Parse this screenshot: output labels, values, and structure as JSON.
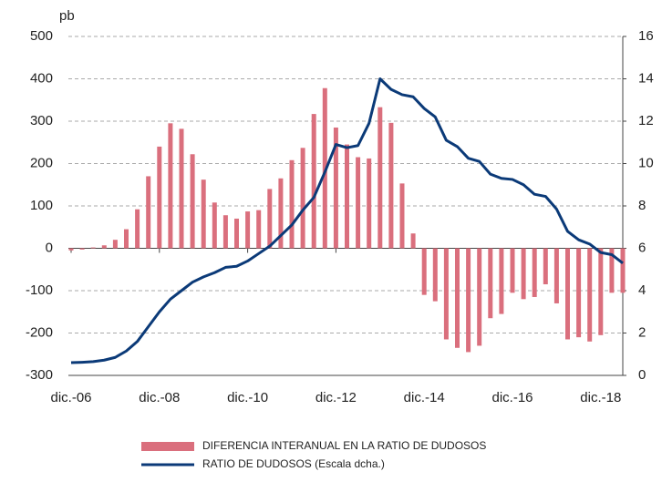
{
  "chart_data": {
    "type": "bar_line",
    "y_unit_label": "pb",
    "categories": [
      "dic.-06",
      null,
      null,
      null,
      null,
      null,
      null,
      null,
      "dic.-08",
      null,
      null,
      null,
      null,
      null,
      null,
      null,
      "dic.-10",
      null,
      null,
      null,
      null,
      null,
      null,
      null,
      "dic.-12",
      null,
      null,
      null,
      null,
      null,
      null,
      null,
      "dic.-14",
      null,
      null,
      null,
      null,
      null,
      null,
      null,
      "dic.-16",
      null,
      null,
      null,
      null,
      null,
      null,
      null,
      "dic.-18",
      null,
      null
    ],
    "series": [
      {
        "name": "DIFERENCIA INTERANUAL EN LA RATIO DE DUDOSOS",
        "color": "#da6f7d",
        "type": "bar",
        "values": [
          -5,
          -3,
          2,
          7,
          20,
          45,
          92,
          170,
          240,
          295,
          282,
          222,
          162,
          108,
          78,
          70,
          87,
          90,
          140,
          165,
          208,
          237,
          317,
          378,
          285,
          245,
          215,
          212,
          333,
          296,
          153,
          35,
          -110,
          -125,
          -215,
          -235,
          -245,
          -230,
          -165,
          -155,
          -105,
          -120,
          -115,
          -85,
          -130,
          -215,
          -210,
          -220,
          -205,
          -105,
          -105
        ]
      },
      {
        "name": "RATIO DE DUDOSOS (Escala dcha.)",
        "color": "#0b3a78",
        "type": "line",
        "axis": "y2",
        "values": [
          0.6,
          0.62,
          0.65,
          0.72,
          0.85,
          1.15,
          1.6,
          2.3,
          3.0,
          3.6,
          4.0,
          4.4,
          4.65,
          4.85,
          5.1,
          5.15,
          5.4,
          5.75,
          6.1,
          6.6,
          7.1,
          7.8,
          8.4,
          9.6,
          10.9,
          10.75,
          10.85,
          11.9,
          14.0,
          13.5,
          13.25,
          13.15,
          12.6,
          12.2,
          11.1,
          10.8,
          10.25,
          10.1,
          9.5,
          9.3,
          9.25,
          9.0,
          8.55,
          8.45,
          7.85,
          6.8,
          6.4,
          6.2,
          5.8,
          5.7,
          5.3
        ]
      }
    ],
    "ylim": [
      -300,
      500
    ],
    "yticks": [
      -300,
      -200,
      -100,
      0,
      100,
      200,
      300,
      400,
      500
    ],
    "y2lim": [
      0,
      16
    ],
    "y2ticks": [
      0,
      2,
      4,
      6,
      8,
      10,
      12,
      14,
      16
    ],
    "grid": true
  }
}
